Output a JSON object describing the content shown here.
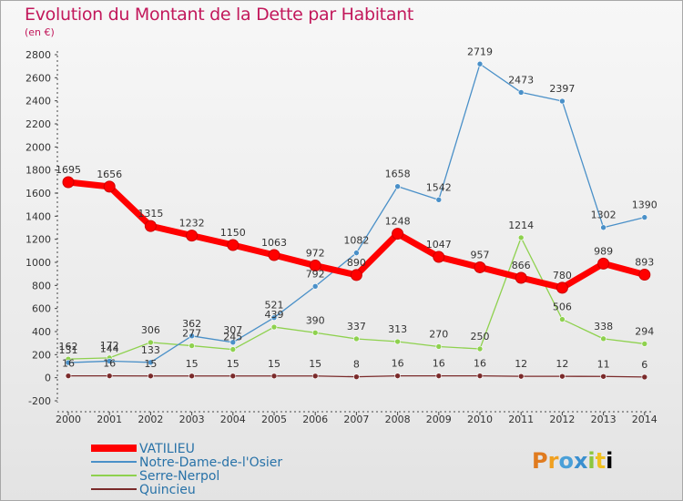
{
  "title": "Evolution du Montant de la Dette par Habitant",
  "subtitle": "(en €)",
  "logo": "Proxiti",
  "chart_data": {
    "type": "line",
    "x": [
      "2000",
      "2001",
      "2002",
      "2003",
      "2004",
      "2005",
      "2006",
      "2007",
      "2008",
      "2009",
      "2010",
      "2011",
      "2012",
      "2013",
      "2014"
    ],
    "ylim": [
      -200,
      2800
    ],
    "yticks": [
      -200,
      0,
      200,
      400,
      600,
      800,
      1000,
      1200,
      1400,
      1600,
      1800,
      2000,
      2200,
      2400,
      2600,
      2800
    ],
    "grid": false,
    "legend_position": "bottom-left",
    "series": [
      {
        "name": "VATILIEU",
        "color": "#ff0000",
        "values": [
          1695,
          1656,
          1315,
          1232,
          1150,
          1063,
          972,
          890,
          1248,
          1047,
          957,
          866,
          780,
          989,
          893
        ]
      },
      {
        "name": "Notre-Dame-de-l'Osier",
        "color": "#4a90c8",
        "values": [
          131,
          144,
          133,
          362,
          307,
          521,
          792,
          1082,
          1658,
          1542,
          2719,
          2473,
          2397,
          1302,
          1390
        ]
      },
      {
        "name": "Serre-Nerpol",
        "color": "#8ed14e",
        "values": [
          162,
          172,
          306,
          277,
          245,
          439,
          390,
          337,
          313,
          270,
          250,
          1214,
          506,
          338,
          294
        ]
      },
      {
        "name": "Quincieu",
        "color": "#7a2a2a",
        "values": [
          16,
          16,
          15,
          15,
          15,
          15,
          15,
          8,
          16,
          16,
          16,
          12,
          12,
          11,
          6
        ]
      }
    ]
  }
}
